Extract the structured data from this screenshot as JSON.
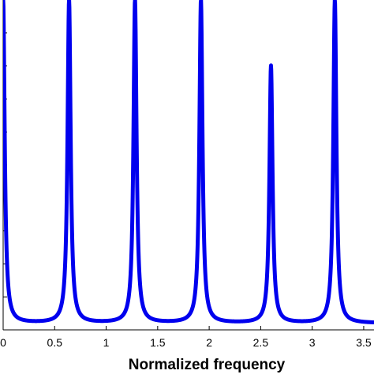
{
  "chart_data": {
    "type": "line",
    "title": "",
    "xlabel": "Normalized frequency",
    "ylabel": "",
    "xlim": [
      0,
      3.6
    ],
    "ylim": [
      0,
      1.0
    ],
    "x_ticks": [
      0,
      0.5,
      1,
      1.5,
      2,
      2.5,
      3,
      3.5
    ],
    "x_tick_labels": [
      "0",
      "0.5",
      "1",
      "1.5",
      "2",
      "2.5",
      "3",
      "3.5"
    ],
    "y_ticks": [
      0.1,
      0.2,
      0.3,
      0.4,
      0.5,
      0.6,
      0.7,
      0.8,
      0.9
    ],
    "grid": false,
    "legend": "none",
    "series": [
      {
        "color": "#0000ee",
        "baseline": 0.02,
        "peaks": [
          {
            "x": 0.0,
            "height": 1.0
          },
          {
            "x": 0.64,
            "height": 1.0
          },
          {
            "x": 1.28,
            "height": 1.0
          },
          {
            "x": 1.92,
            "height": 1.0
          },
          {
            "x": 2.6,
            "height": 0.8
          },
          {
            "x": 3.22,
            "height": 1.0
          }
        ],
        "peak_halfwidth": 0.018
      }
    ]
  }
}
